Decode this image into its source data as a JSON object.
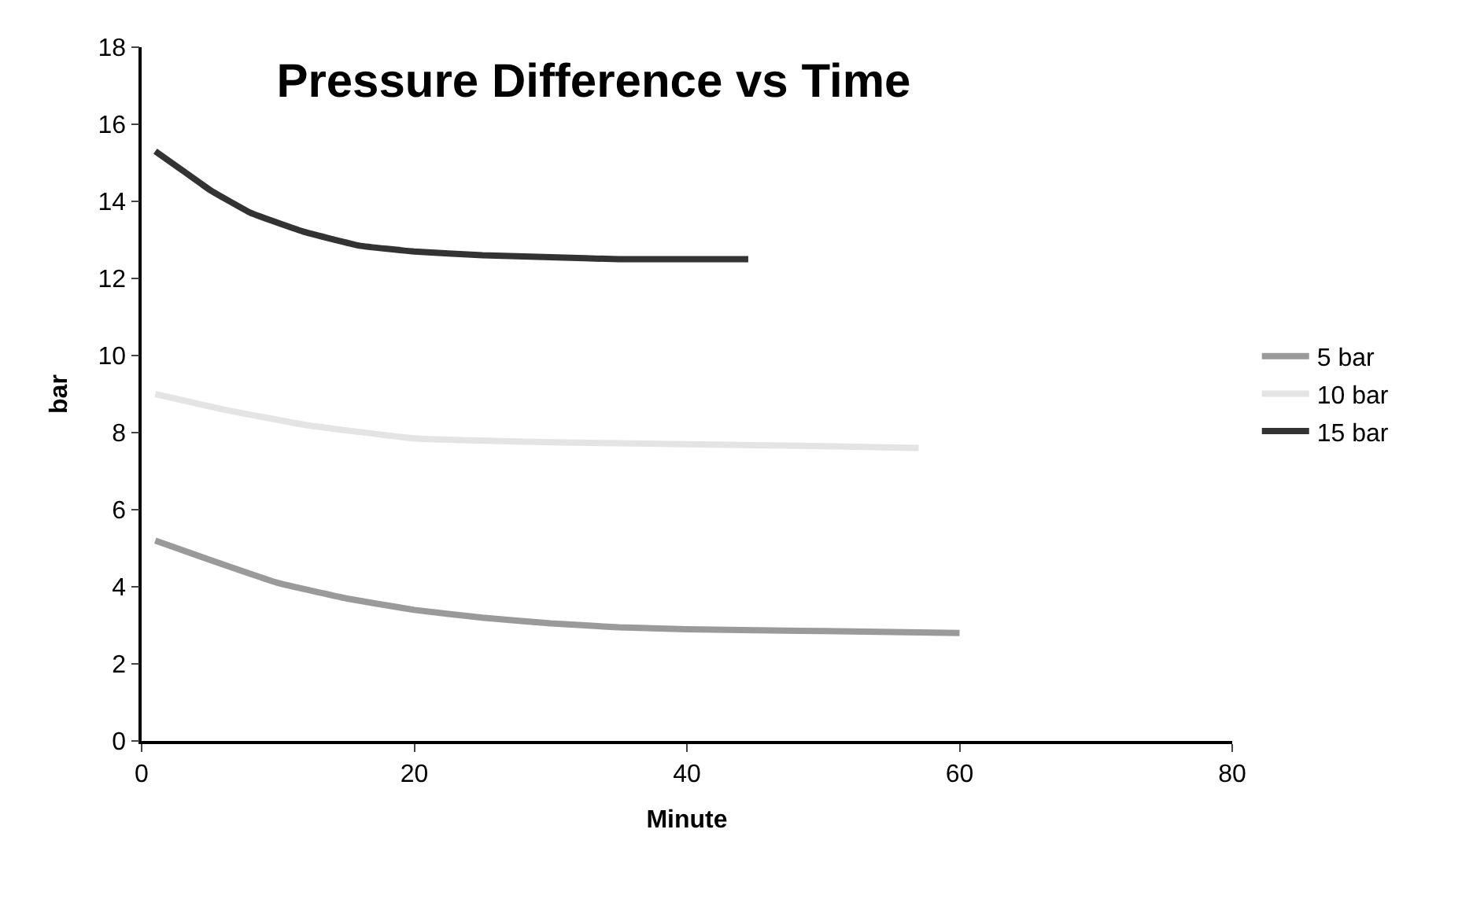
{
  "chart_data": {
    "type": "line",
    "title": "Pressure Difference vs Time",
    "xlabel": "Minute",
    "ylabel": "bar",
    "xlim": [
      0,
      80
    ],
    "xticks": [
      0,
      20,
      40,
      60,
      80
    ],
    "ylim": [
      0,
      18
    ],
    "yticks": [
      0,
      2,
      4,
      6,
      8,
      10,
      12,
      14,
      16,
      18
    ],
    "legend": "right",
    "line_style": "solid",
    "series": [
      {
        "name": "5 bar",
        "color": "#9a9a9a",
        "x": [
          1,
          5,
          10,
          15,
          20,
          25,
          30,
          35,
          40,
          50,
          60
        ],
        "values": [
          5.2,
          4.7,
          4.1,
          3.7,
          3.4,
          3.2,
          3.05,
          2.95,
          2.9,
          2.85,
          2.8
        ]
      },
      {
        "name": "10 bar",
        "color": "#e4e4e4",
        "x": [
          1,
          6,
          12,
          20,
          30,
          40,
          50,
          57
        ],
        "values": [
          9.0,
          8.6,
          8.2,
          7.85,
          7.75,
          7.7,
          7.65,
          7.6
        ]
      },
      {
        "name": "15 bar",
        "color": "#333333",
        "x": [
          1,
          3,
          5,
          8,
          12,
          16,
          20,
          25,
          30,
          35,
          44.5
        ],
        "values": [
          15.3,
          14.8,
          14.3,
          13.7,
          13.2,
          12.85,
          12.7,
          12.6,
          12.55,
          12.5,
          12.5
        ]
      }
    ]
  }
}
